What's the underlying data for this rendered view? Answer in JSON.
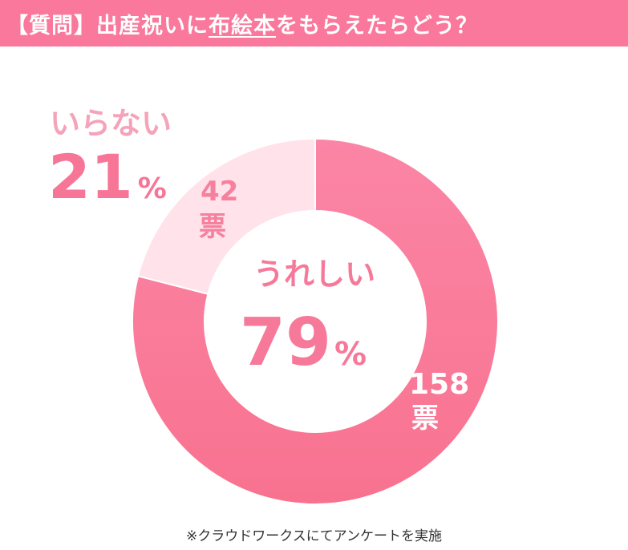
{
  "header": {
    "title_prefix": "【質問】出産祝いに",
    "title_highlight": "布絵本",
    "title_suffix": "をもらえたらどう？"
  },
  "chart_data": {
    "type": "pie",
    "variant": "donut",
    "series": [
      {
        "name": "うれしい",
        "percent": 79,
        "percent_label": "79",
        "votes": 158,
        "votes_label": "158",
        "unit": "票",
        "color": "#f97a9c"
      },
      {
        "name": "いらない",
        "percent": 21,
        "percent_label": "21",
        "votes": 42,
        "votes_label": "42",
        "unit": "票",
        "color": "#ffe2ea"
      }
    ],
    "percent_sign": "%",
    "start": "top, clockwise"
  },
  "footer": {
    "note": "※クラウドワークスにてアンケートを実施"
  }
}
